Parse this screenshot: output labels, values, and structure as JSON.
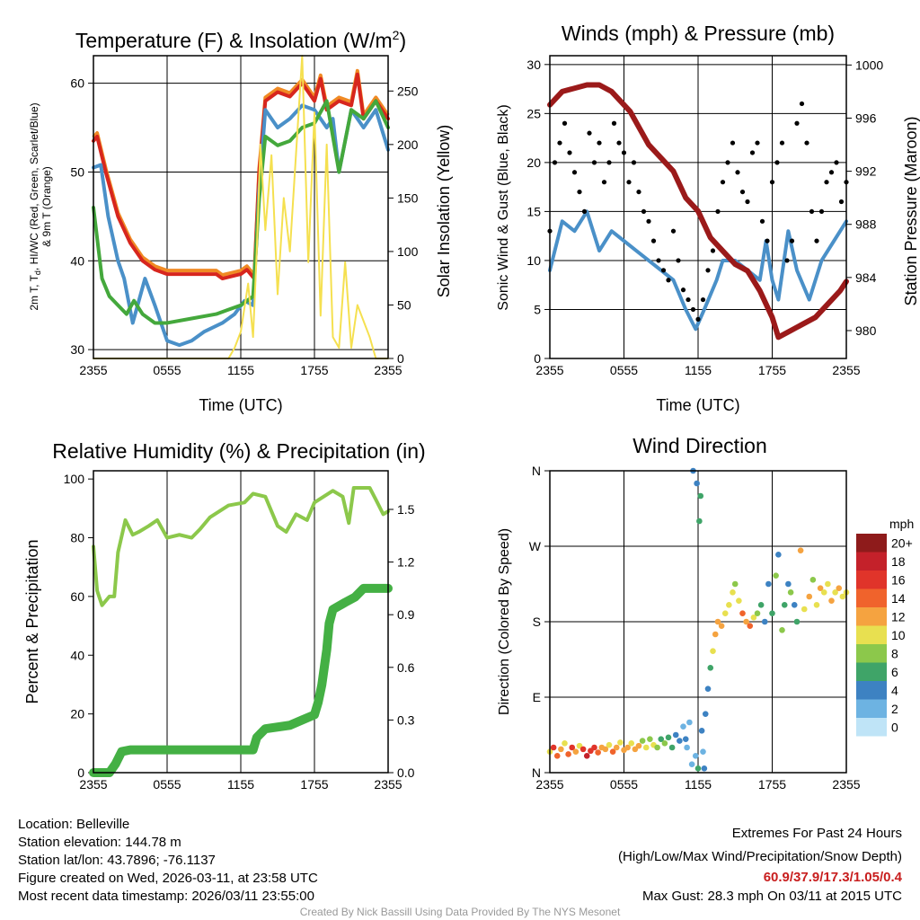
{
  "colors": {
    "temp": "#d7261e",
    "dew": "#4a90c8",
    "hiwc": "#44a83c",
    "t9m": "#f08a24",
    "sun": "#f5e050",
    "wind": "#4a90c8",
    "gust": "#000000",
    "pressure": "#9b1a1a",
    "rh": "#8cc84b",
    "precip": "#44b044",
    "extremes": "#c81e1e",
    "credit": "#999999"
  },
  "chart_data": [
    {
      "type": "line",
      "title": "Temperature (F) & Insolation (W/m",
      "title_sup": "2",
      "title_end": ")",
      "xlabel": "Time (UTC)",
      "ylabel_line1": "2m T, T",
      "ylabel_sub": "d",
      "ylabel_rest": ", HI/WC (Red, Green, Scarlet/Blue)",
      "ylabel_line2": "& 9m T (Orange)",
      "y2label": "Solar Insolation (Yellow)",
      "x_ticks": [
        "2355",
        "0555",
        "1155",
        "1755",
        "2355"
      ],
      "xlim": [
        0,
        24
      ],
      "ylim": [
        29,
        63.1
      ],
      "y_ticks": [
        30,
        40,
        50,
        60
      ],
      "y2lim": [
        0,
        283
      ],
      "y2_ticks": [
        0,
        50,
        100,
        150,
        200,
        250
      ],
      "series": [
        {
          "name": "2m T",
          "color_key": "temp",
          "x": [
            0,
            0.3,
            1,
            2,
            3,
            4,
            5,
            6,
            8,
            10,
            10.5,
            12,
            12.5,
            13.1,
            13.5,
            14,
            15,
            16,
            17,
            18,
            18.5,
            19,
            20,
            21,
            21.5,
            22,
            23,
            24
          ],
          "y": [
            53.5,
            54,
            50,
            45,
            42,
            40,
            39,
            38.5,
            38.5,
            38.5,
            38,
            38.5,
            39,
            38,
            50,
            58,
            59,
            58.5,
            60,
            58,
            60.5,
            57,
            58,
            57.5,
            61,
            56,
            58,
            56
          ]
        },
        {
          "name": "Td",
          "color_key": "dew",
          "x": [
            0,
            0.6,
            1.2,
            2,
            2.5,
            3.2,
            4.2,
            5,
            6,
            7,
            8,
            9,
            10.5,
            11.5,
            12.3,
            13,
            13.5,
            14,
            15,
            16,
            17,
            18,
            19,
            19.5,
            20,
            21,
            22,
            23,
            24
          ],
          "y": [
            50.5,
            50.8,
            45,
            40,
            38,
            33,
            38,
            35,
            31,
            30.5,
            31,
            32,
            33,
            34,
            35.5,
            35,
            48,
            57,
            55,
            56,
            57.5,
            57,
            55,
            56,
            50,
            57,
            55,
            57,
            52.5
          ]
        },
        {
          "name": "HI/WC",
          "color_key": "hiwc",
          "x": [
            0,
            0.7,
            1.3,
            2,
            2.7,
            3.3,
            4,
            5,
            6,
            8,
            10,
            12,
            13,
            13.5,
            14,
            15,
            16,
            17,
            18,
            19,
            20,
            21,
            22,
            23,
            24
          ],
          "y": [
            46,
            38,
            36,
            35,
            34,
            35.5,
            34,
            33,
            33,
            33.5,
            34,
            35,
            36,
            47,
            54,
            53,
            53.5,
            55,
            55.5,
            58,
            50,
            57,
            56,
            58,
            55
          ]
        },
        {
          "name": "Insolation",
          "color_key": "sun",
          "axis": "y2",
          "x": [
            0,
            11,
            11.5,
            12,
            12.6,
            13,
            13.3,
            13.6,
            14,
            14.5,
            15,
            15.5,
            16,
            17,
            17.5,
            18,
            18.5,
            19,
            19.5,
            20,
            20.5,
            21,
            21.5,
            22.5,
            23,
            24
          ],
          "y": [
            0,
            0,
            10,
            25,
            70,
            20,
            100,
            200,
            120,
            190,
            60,
            150,
            100,
            283,
            90,
            230,
            40,
            200,
            20,
            10,
            90,
            10,
            50,
            20,
            0,
            0
          ]
        }
      ]
    },
    {
      "type": "line",
      "title": "Winds (mph) & Pressure (mb)",
      "xlabel": "Time (UTC)",
      "ylabel": "Sonic Wind & Gust (Blue, Black)",
      "y2label": "Station Pressure (Maroon)",
      "x_ticks": [
        "2355",
        "0555",
        "1155",
        "1755",
        "2355"
      ],
      "xlim": [
        0,
        24
      ],
      "ylim": [
        0,
        30.9
      ],
      "y_ticks": [
        0,
        5,
        10,
        15,
        20,
        25,
        30
      ],
      "y2lim": [
        977.9,
        1000.7
      ],
      "y2_ticks": [
        980,
        984,
        988,
        992,
        996,
        1000
      ],
      "series": [
        {
          "name": "Sonic Wind",
          "color_key": "wind",
          "x": [
            0,
            1,
            2,
            3,
            4,
            5,
            6,
            7,
            8,
            9,
            10,
            11,
            11.8,
            12.5,
            13.5,
            14,
            15,
            16,
            17,
            17.5,
            18,
            18.5,
            19.3,
            20,
            21,
            22,
            23,
            24
          ],
          "y": [
            9,
            14,
            13,
            15,
            11,
            13,
            12,
            11,
            10,
            9,
            8,
            5,
            3,
            5,
            8,
            10,
            10,
            9,
            8,
            12,
            8,
            6,
            13,
            9,
            6,
            10,
            12,
            14
          ]
        },
        {
          "name": "Gust",
          "color_key": "gust",
          "type": "scatter",
          "x_start": 0,
          "x_step": 0.4,
          "y": [
            13,
            20,
            22,
            24,
            21,
            19,
            17,
            15,
            23,
            20,
            22,
            18,
            20,
            24,
            22,
            21,
            18,
            20,
            17,
            15,
            14,
            12,
            10,
            9,
            8,
            13,
            10,
            7,
            6,
            5,
            4,
            6,
            9,
            11,
            15,
            18,
            20,
            22,
            19,
            17,
            16,
            21,
            22,
            14,
            12,
            18,
            20,
            22,
            10,
            12,
            24,
            26,
            22,
            15,
            12,
            15,
            18,
            19,
            20,
            16,
            18
          ]
        },
        {
          "name": "Pressure",
          "color_key": "pressure",
          "axis": "y2",
          "x": [
            0,
            1,
            3,
            4,
            5,
            6.5,
            8,
            9,
            10,
            11,
            12,
            13,
            14,
            15,
            16,
            17,
            18,
            18.5,
            19.5,
            20.5,
            21.5,
            22.5,
            23.5,
            24
          ],
          "y": [
            997,
            998,
            998.5,
            998.5,
            998,
            996.5,
            994,
            993,
            992,
            990,
            989,
            987,
            986,
            985,
            984.5,
            983,
            981,
            979.5,
            980,
            980.5,
            981,
            982,
            983,
            983.7
          ]
        }
      ]
    },
    {
      "type": "line",
      "title": "Relative Humidity (%) & Precipitation (in)",
      "ylabel": "Percent & Precipitation",
      "x_ticks": [
        "2355",
        "0555",
        "1155",
        "1755",
        "2355"
      ],
      "xlim": [
        0,
        24
      ],
      "ylim": [
        0,
        102.8
      ],
      "y_ticks": [
        0,
        20,
        40,
        60,
        80,
        100
      ],
      "y2lim": [
        0,
        1.72
      ],
      "y2_ticks": [
        "0.0",
        "0.3",
        "0.6",
        "0.9",
        "1.2",
        "1.5"
      ],
      "series": [
        {
          "name": "RH",
          "color_key": "rh",
          "x": [
            0,
            0.3,
            0.7,
            1.3,
            1.7,
            2,
            2.6,
            3.2,
            3.7,
            4.5,
            5.2,
            6,
            7,
            8,
            8.7,
            9.5,
            11,
            12.3,
            13,
            14,
            15,
            15.7,
            16.5,
            17.4,
            18,
            19.5,
            20.3,
            20.8,
            21.2,
            22.5,
            23,
            23.6,
            24
          ],
          "y": [
            77,
            62,
            57,
            60,
            60,
            75,
            86,
            81,
            82,
            84,
            86,
            80,
            81,
            80,
            83,
            87,
            91,
            92,
            95,
            94,
            84,
            82,
            88,
            86,
            92,
            96,
            94,
            85,
            97,
            97,
            93,
            88,
            89
          ]
        },
        {
          "name": "Precipitation",
          "color_key": "precip",
          "axis": "y2",
          "x": [
            0,
            1.3,
            1.8,
            2.3,
            3,
            13,
            13.3,
            14,
            16,
            17,
            18,
            18.3,
            18.6,
            19,
            19.2,
            19.5,
            20.5,
            21.3,
            22,
            24
          ],
          "y": [
            0,
            0,
            0.05,
            0.12,
            0.13,
            0.13,
            0.2,
            0.25,
            0.27,
            0.3,
            0.33,
            0.4,
            0.5,
            0.7,
            0.85,
            0.93,
            0.97,
            1.0,
            1.05,
            1.05
          ]
        }
      ]
    },
    {
      "type": "scatter",
      "title": "Wind Direction",
      "ylabel": "Direction (Colored By Speed)",
      "x_ticks": [
        "2355",
        "0555",
        "1155",
        "1755",
        "2355"
      ],
      "xlim": [
        0,
        24
      ],
      "ylim": [
        0,
        360
      ],
      "y_ticks": [
        "N",
        "E",
        "S",
        "W",
        "N"
      ],
      "colorbar": {
        "title": "mph",
        "labels": [
          "20+",
          "18",
          "16",
          "14",
          "12",
          "10",
          "8",
          "6",
          "4",
          "2",
          "0"
        ],
        "colors": [
          "#8e1b1b",
          "#c4212a",
          "#e0342a",
          "#f0632c",
          "#f5a340",
          "#e8e050",
          "#8cc84b",
          "#3fa468",
          "#3d82c2",
          "#6db3e2",
          "#bfe4f7"
        ]
      },
      "points": [
        [
          0,
          25,
          10
        ],
        [
          0.3,
          30,
          16
        ],
        [
          0.6,
          20,
          14
        ],
        [
          0.9,
          28,
          12
        ],
        [
          1.2,
          35,
          10
        ],
        [
          1.5,
          22,
          15
        ],
        [
          1.8,
          30,
          17
        ],
        [
          2.1,
          25,
          12
        ],
        [
          2.4,
          32,
          10
        ],
        [
          2.7,
          28,
          16
        ],
        [
          3.0,
          20,
          18
        ],
        [
          3.3,
          26,
          17
        ],
        [
          3.6,
          30,
          16
        ],
        [
          3.9,
          24,
          15
        ],
        [
          4.2,
          30,
          13
        ],
        [
          4.5,
          28,
          12
        ],
        [
          4.8,
          33,
          11
        ],
        [
          5.1,
          25,
          14
        ],
        [
          5.4,
          30,
          12
        ],
        [
          5.7,
          36,
          11
        ],
        [
          6.0,
          27,
          13
        ],
        [
          6.3,
          30,
          12
        ],
        [
          6.6,
          35,
          10
        ],
        [
          6.9,
          28,
          13
        ],
        [
          7.2,
          32,
          12
        ],
        [
          7.5,
          38,
          9
        ],
        [
          7.8,
          30,
          11
        ],
        [
          8.1,
          40,
          9
        ],
        [
          8.4,
          33,
          10
        ],
        [
          8.7,
          30,
          8
        ],
        [
          9.0,
          40,
          6
        ],
        [
          9.3,
          35,
          8
        ],
        [
          9.6,
          42,
          7
        ],
        [
          9.9,
          30,
          6
        ],
        [
          10.2,
          45,
          5
        ],
        [
          10.5,
          38,
          4
        ],
        [
          10.8,
          55,
          3
        ],
        [
          11.0,
          40,
          4
        ],
        [
          11.1,
          30,
          2
        ],
        [
          11.3,
          60,
          2
        ],
        [
          11.5,
          10,
          3
        ],
        [
          11.6,
          360,
          4
        ],
        [
          11.8,
          20,
          3
        ],
        [
          11.9,
          345,
          5
        ],
        [
          12.0,
          5,
          6
        ],
        [
          12.1,
          300,
          6
        ],
        [
          12.2,
          330,
          6
        ],
        [
          12.3,
          50,
          4
        ],
        [
          12.4,
          25,
          3
        ],
        [
          12.5,
          5,
          4
        ],
        [
          12.6,
          70,
          5
        ],
        [
          12.8,
          100,
          5
        ],
        [
          13.0,
          125,
          6
        ],
        [
          13.2,
          145,
          10
        ],
        [
          13.4,
          165,
          12
        ],
        [
          13.6,
          180,
          13
        ],
        [
          13.9,
          175,
          12
        ],
        [
          14.2,
          190,
          11
        ],
        [
          14.5,
          200,
          10
        ],
        [
          14.8,
          215,
          10
        ],
        [
          15.0,
          225,
          8
        ],
        [
          15.3,
          205,
          10
        ],
        [
          15.6,
          190,
          14
        ],
        [
          15.9,
          180,
          12
        ],
        [
          16.2,
          175,
          14
        ],
        [
          16.5,
          185,
          11
        ],
        [
          16.8,
          190,
          9
        ],
        [
          17.1,
          200,
          6
        ],
        [
          17.4,
          180,
          4
        ],
        [
          17.7,
          225,
          5
        ],
        [
          18.0,
          190,
          7
        ],
        [
          18.3,
          235,
          8
        ],
        [
          18.5,
          260,
          4
        ],
        [
          18.8,
          170,
          8
        ],
        [
          19.0,
          200,
          6
        ],
        [
          19.3,
          225,
          5
        ],
        [
          19.5,
          215,
          8
        ],
        [
          19.8,
          200,
          4
        ],
        [
          20.0,
          180,
          7
        ],
        [
          20.3,
          265,
          12
        ],
        [
          20.6,
          195,
          10
        ],
        [
          21.0,
          210,
          12
        ],
        [
          21.3,
          230,
          8
        ],
        [
          21.6,
          200,
          10
        ],
        [
          21.9,
          220,
          12
        ],
        [
          22.2,
          215,
          11
        ],
        [
          22.5,
          225,
          10
        ],
        [
          22.8,
          205,
          12
        ],
        [
          23.1,
          215,
          11
        ],
        [
          23.4,
          220,
          12
        ],
        [
          23.7,
          210,
          10
        ],
        [
          24.0,
          215,
          11
        ]
      ]
    }
  ],
  "footer": {
    "location": "Location: Belleville",
    "elevation": "Station elevation: 144.78 m",
    "latlon": "Station lat/lon: 43.7896; -76.1137",
    "created": "Figure created on Wed, 2026-03-11, at 23:58 UTC",
    "recent": "Most recent data timestamp: 2026/03/11 23:55:00",
    "extremes_title": "Extremes For Past 24 Hours",
    "extremes_sub": "(High/Low/Max Wind/Precipitation/Snow Depth)",
    "extremes_values": "60.9/37.9/17.3/1.05/0.4",
    "max_gust": "Max Gust: 28.3 mph On 03/11 at 2015 UTC",
    "credit": "Created By Nick Bassill Using Data Provided By The NYS Mesonet"
  }
}
